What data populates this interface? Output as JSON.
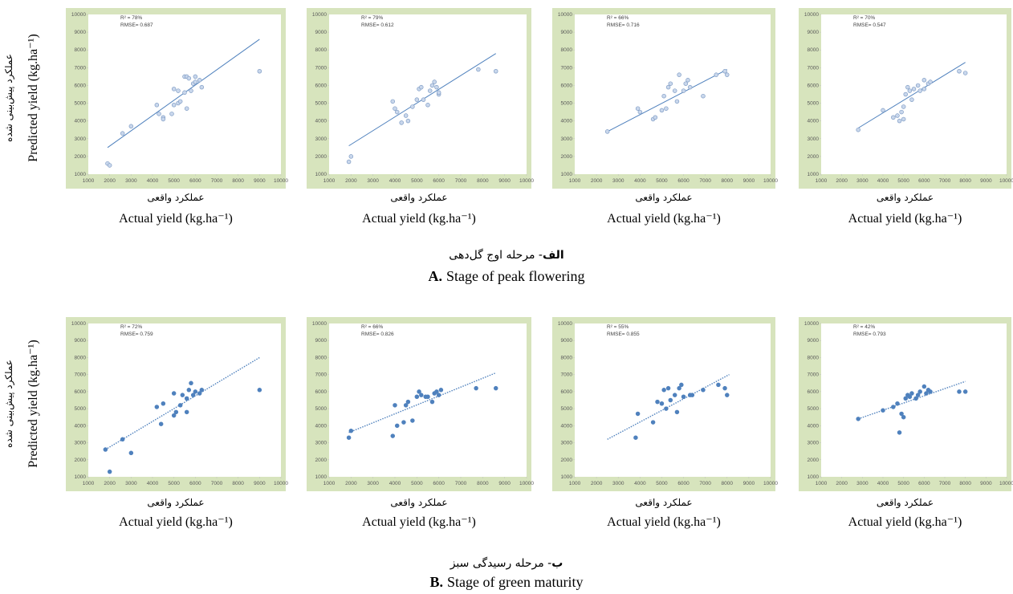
{
  "chart_data": [
    {
      "type": "scatter",
      "marker": "open",
      "line_style": "solid",
      "background": "#d7e4bd",
      "color": "#4f81bd",
      "annotations": [
        "R² = 78%",
        "RMSE= 0.687"
      ],
      "x": [
        1900,
        2000,
        2600,
        3000,
        4200,
        4300,
        4500,
        4500,
        4900,
        5000,
        5000,
        5200,
        5200,
        5300,
        5500,
        5500,
        5600,
        5600,
        5700,
        5800,
        5900,
        6000,
        6000,
        6200,
        6300,
        9000
      ],
      "values": [
        1600,
        1500,
        3300,
        3700,
        4900,
        4400,
        4200,
        4100,
        4400,
        4900,
        5800,
        5000,
        5700,
        5100,
        5600,
        6500,
        6500,
        4700,
        6400,
        5700,
        6100,
        6500,
        6200,
        6300,
        5900,
        6800
      ],
      "trendline": {
        "x": [
          1900,
          9000
        ],
        "y": [
          2500,
          8600
        ]
      },
      "xlim": [
        1000,
        10000
      ],
      "ylim": [
        1000,
        10000
      ],
      "xticks": [
        1000,
        2000,
        3000,
        4000,
        5000,
        6000,
        7000,
        8000,
        9000,
        10000
      ],
      "yticks": [
        1000,
        2000,
        3000,
        4000,
        5000,
        6000,
        7000,
        8000,
        9000,
        10000
      ],
      "x_label_fa": "عملکرد واقعی",
      "x_label_en": "Actual yield (kg.ha⁻¹)"
    },
    {
      "type": "scatter",
      "marker": "open",
      "line_style": "solid",
      "background": "#d7e4bd",
      "color": "#4f81bd",
      "annotations": [
        "R² = 79%",
        "RMSE= 0.612"
      ],
      "x": [
        1900,
        2000,
        3900,
        4000,
        4100,
        4300,
        4500,
        4600,
        4800,
        5000,
        5100,
        5200,
        5300,
        5500,
        5600,
        5700,
        5800,
        5900,
        6000,
        6000,
        7800,
        8600
      ],
      "values": [
        1700,
        2000,
        5100,
        4700,
        4500,
        3900,
        4300,
        4000,
        4800,
        5200,
        5800,
        5900,
        5200,
        4900,
        5700,
        6000,
        6200,
        5900,
        5500,
        5600,
        6900,
        6800
      ],
      "trendline": {
        "x": [
          1900,
          8600
        ],
        "y": [
          2600,
          7800
        ]
      },
      "xlim": [
        1000,
        10000
      ],
      "ylim": [
        1000,
        10000
      ],
      "xticks": [
        1000,
        2000,
        3000,
        4000,
        5000,
        6000,
        7000,
        8000,
        9000,
        10000
      ],
      "yticks": [
        1000,
        2000,
        3000,
        4000,
        5000,
        6000,
        7000,
        8000,
        9000,
        10000
      ],
      "x_label_fa": "عملکرد واقعی",
      "x_label_en": "Actual yield (kg.ha⁻¹)"
    },
    {
      "type": "scatter",
      "marker": "open",
      "line_style": "solid",
      "background": "#d7e4bd",
      "color": "#4f81bd",
      "annotations": [
        "R² = 66%",
        "RMSE= 0.716"
      ],
      "x": [
        2500,
        3900,
        4000,
        4600,
        4700,
        5000,
        5100,
        5200,
        5300,
        5400,
        5600,
        5700,
        5800,
        6000,
        6100,
        6200,
        6300,
        6900,
        7500,
        7900,
        8000
      ],
      "values": [
        3400,
        4700,
        4500,
        4100,
        4200,
        4600,
        5400,
        4700,
        5900,
        6100,
        5700,
        5100,
        6600,
        5700,
        6100,
        6300,
        5900,
        5400,
        6600,
        6800,
        6600
      ],
      "trendline": {
        "x": [
          2500,
          8000
        ],
        "y": [
          3400,
          6900
        ]
      },
      "xlim": [
        1000,
        10000
      ],
      "ylim": [
        1000,
        10000
      ],
      "xticks": [
        1000,
        2000,
        3000,
        4000,
        5000,
        6000,
        7000,
        8000,
        9000,
        10000
      ],
      "yticks": [
        1000,
        2000,
        3000,
        4000,
        5000,
        6000,
        7000,
        8000,
        9000,
        10000
      ],
      "x_label_fa": "عملکرد واقعی",
      "x_label_en": "Actual yield (kg.ha⁻¹)"
    },
    {
      "type": "scatter",
      "marker": "open",
      "line_style": "solid",
      "background": "#d7e4bd",
      "color": "#4f81bd",
      "annotations": [
        "R² = 70%",
        "RMSE= 0.547"
      ],
      "x": [
        2800,
        4000,
        4500,
        4700,
        4800,
        4900,
        5000,
        5000,
        5100,
        5200,
        5300,
        5400,
        5500,
        5700,
        5800,
        6000,
        6000,
        6200,
        6300,
        7700,
        8000
      ],
      "values": [
        3500,
        4600,
        4200,
        4300,
        4000,
        4500,
        4800,
        4100,
        5500,
        5900,
        5700,
        5200,
        5800,
        6000,
        5700,
        6300,
        5800,
        6100,
        6200,
        6800,
        6700
      ],
      "trendline": {
        "x": [
          2800,
          8000
        ],
        "y": [
          3600,
          7300
        ]
      },
      "xlim": [
        1000,
        10000
      ],
      "ylim": [
        1000,
        10000
      ],
      "xticks": [
        1000,
        2000,
        3000,
        4000,
        5000,
        6000,
        7000,
        8000,
        9000,
        10000
      ],
      "yticks": [
        1000,
        2000,
        3000,
        4000,
        5000,
        6000,
        7000,
        8000,
        9000,
        10000
      ],
      "x_label_fa": "عملکرد واقعی",
      "x_label_en": "Actual yield (kg.ha⁻¹)"
    },
    {
      "type": "scatter",
      "marker": "filled",
      "line_style": "dotted",
      "background": "#d7e4bd",
      "color": "#4f81bd",
      "annotations": [
        "R² = 72%",
        "RMSE= 0.759"
      ],
      "x": [
        1800,
        2000,
        2600,
        3000,
        4200,
        4400,
        4500,
        5000,
        5000,
        5100,
        5300,
        5400,
        5600,
        5600,
        5700,
        5800,
        5900,
        6000,
        6200,
        6300,
        9000
      ],
      "values": [
        2600,
        1300,
        3200,
        2400,
        5100,
        4100,
        5300,
        4600,
        5900,
        4800,
        5200,
        5800,
        5600,
        4800,
        6100,
        6500,
        5800,
        6000,
        5900,
        6100,
        6100
      ],
      "trendline": {
        "x": [
          1800,
          9000
        ],
        "y": [
          2600,
          8000
        ]
      },
      "xlim": [
        1000,
        10000
      ],
      "ylim": [
        1000,
        10000
      ],
      "xticks": [
        1000,
        2000,
        3000,
        4000,
        5000,
        6000,
        7000,
        8000,
        9000,
        10000
      ],
      "yticks": [
        1000,
        2000,
        3000,
        4000,
        5000,
        6000,
        7000,
        8000,
        9000,
        10000
      ],
      "x_label_fa": "عملکرد واقعی",
      "x_label_en": "Actual yield (kg.ha⁻¹)"
    },
    {
      "type": "scatter",
      "marker": "filled",
      "line_style": "dotted",
      "background": "#d7e4bd",
      "color": "#4f81bd",
      "annotations": [
        "R² = 66%",
        "RMSE= 0.826"
      ],
      "x": [
        1900,
        2000,
        3900,
        4000,
        4100,
        4400,
        4500,
        4600,
        4800,
        5000,
        5100,
        5200,
        5400,
        5500,
        5700,
        5800,
        5900,
        6000,
        6100,
        7700,
        8600
      ],
      "values": [
        3300,
        3700,
        3400,
        5200,
        4000,
        4200,
        5200,
        5400,
        4300,
        5700,
        6000,
        5800,
        5700,
        5700,
        5400,
        5900,
        6000,
        5800,
        6100,
        6200,
        6200
      ],
      "trendline": {
        "x": [
          1900,
          8600
        ],
        "y": [
          3600,
          7100
        ]
      },
      "xlim": [
        1000,
        10000
      ],
      "ylim": [
        1000,
        10000
      ],
      "xticks": [
        1000,
        2000,
        3000,
        4000,
        5000,
        6000,
        7000,
        8000,
        9000,
        10000
      ],
      "yticks": [
        1000,
        2000,
        3000,
        4000,
        5000,
        6000,
        7000,
        8000,
        9000,
        10000
      ],
      "x_label_fa": "عملکرد واقعی",
      "x_label_en": "Actual yield (kg.ha⁻¹)"
    },
    {
      "type": "scatter",
      "marker": "filled",
      "line_style": "dotted",
      "background": "#d7e4bd",
      "color": "#4f81bd",
      "annotations": [
        "R² = 55%",
        "RMSE= 0.855"
      ],
      "x": [
        3800,
        3900,
        4600,
        4800,
        5000,
        5100,
        5200,
        5300,
        5400,
        5600,
        5700,
        5800,
        5900,
        6000,
        6300,
        6400,
        6900,
        7600,
        7900,
        8000
      ],
      "values": [
        3300,
        4700,
        4200,
        5400,
        5300,
        6100,
        5000,
        6200,
        5500,
        5800,
        4800,
        6200,
        6400,
        5700,
        5800,
        5800,
        6100,
        6400,
        6200,
        5800
      ],
      "trendline": {
        "x": [
          2500,
          8100
        ],
        "y": [
          3200,
          7000
        ]
      },
      "xlim": [
        1000,
        10000
      ],
      "ylim": [
        1000,
        10000
      ],
      "xticks": [
        1000,
        2000,
        3000,
        4000,
        5000,
        6000,
        7000,
        8000,
        9000,
        10000
      ],
      "yticks": [
        1000,
        2000,
        3000,
        4000,
        5000,
        6000,
        7000,
        8000,
        9000,
        10000
      ],
      "x_label_fa": "عملکرد واقعی",
      "x_label_en": "Actual yield (kg.ha⁻¹)"
    },
    {
      "type": "scatter",
      "marker": "filled",
      "line_style": "dotted",
      "background": "#d7e4bd",
      "color": "#4f81bd",
      "annotations": [
        "R² = 42%",
        "RMSE= 0.793"
      ],
      "x": [
        2800,
        4000,
        4500,
        4700,
        4800,
        4900,
        5000,
        5100,
        5200,
        5300,
        5400,
        5600,
        5700,
        5800,
        6000,
        6100,
        6200,
        6300,
        7700,
        8000
      ],
      "values": [
        4400,
        4900,
        5100,
        5300,
        3600,
        4700,
        4500,
        5600,
        5800,
        5700,
        5900,
        5600,
        5800,
        6000,
        6300,
        5900,
        6100,
        6000,
        6000,
        6000
      ],
      "trendline": {
        "x": [
          2800,
          8000
        ],
        "y": [
          4400,
          6600
        ]
      },
      "xlim": [
        1000,
        10000
      ],
      "ylim": [
        1000,
        10000
      ],
      "xticks": [
        1000,
        2000,
        3000,
        4000,
        5000,
        6000,
        7000,
        8000,
        9000,
        10000
      ],
      "yticks": [
        1000,
        2000,
        3000,
        4000,
        5000,
        6000,
        7000,
        8000,
        9000,
        10000
      ],
      "x_label_fa": "عملکرد واقعی",
      "x_label_en": "Actual yield (kg.ha⁻¹)"
    }
  ],
  "rows": [
    {
      "y_label_fa": "عملکرد پیش‌بینی شده",
      "y_label_en": "Predicted yield (kg.ha⁻¹)",
      "caption_fa_bold": "الف",
      "caption_fa": "- مرحله اوج گل‌دهی",
      "caption_en_bold": "A.",
      "caption_en": "Stage of peak flowering"
    },
    {
      "y_label_fa": "عملکرد پیش‌بینی شده",
      "y_label_en": "Predicted yield (kg.ha⁻¹)",
      "caption_fa_bold": "ب",
      "caption_fa": "- مرحله رسیدگی سبز",
      "caption_en_bold": "B.",
      "caption_en": "Stage of green maturity"
    }
  ]
}
